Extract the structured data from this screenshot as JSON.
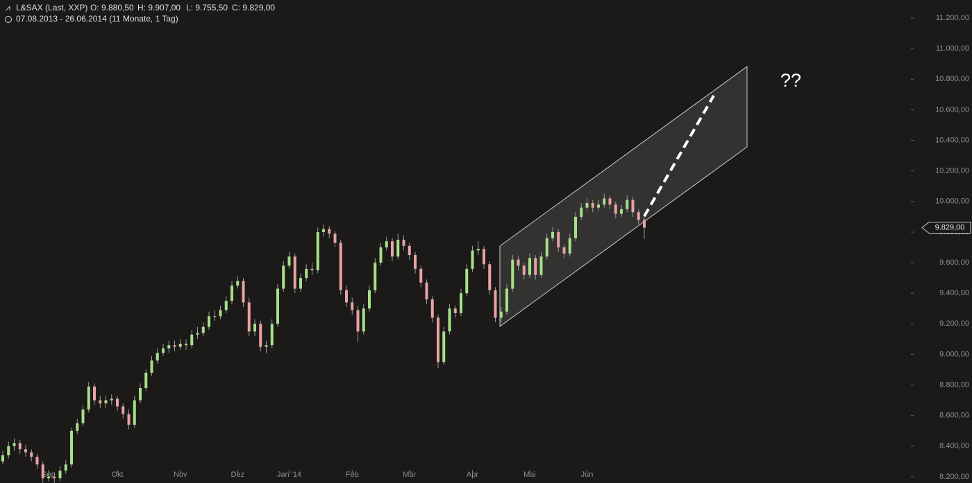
{
  "chart_data": {
    "type": "candlestick",
    "title": "L&SAX (Last, XXP)",
    "header_stats": [
      "O: 9.880,50",
      "H: 9.907,00",
      "L: 9.755,50",
      "C: 9.829,00"
    ],
    "subtitle": "07.08.2013 - 26.06.2014 (11 Monate, 1 Tag)",
    "annotation": "??",
    "up_color": "#a6e08a",
    "down_color": "#e8a3a3",
    "last_price": {
      "value": 9829,
      "label": "9.829,00"
    },
    "ylim": [
      8159,
      11318
    ],
    "yticks": [
      {
        "value": 8200,
        "label": "8.200,00"
      },
      {
        "value": 8400,
        "label": "8.400,00"
      },
      {
        "value": 8600,
        "label": "8.600,00"
      },
      {
        "value": 8800,
        "label": "8.800,00"
      },
      {
        "value": 9000,
        "label": "9.000,00"
      },
      {
        "value": 9200,
        "label": "9.200,00"
      },
      {
        "value": 9400,
        "label": "9.400,00"
      },
      {
        "value": 9600,
        "label": "9.600,00"
      },
      {
        "value": 9800,
        "label": "9.800,00"
      },
      {
        "value": 10000,
        "label": "10.000,00"
      },
      {
        "value": 10200,
        "label": "10.200,00"
      },
      {
        "value": 10400,
        "label": "10.400,00"
      },
      {
        "value": 10600,
        "label": "10.600,00"
      },
      {
        "value": 10800,
        "label": "10.800,00"
      },
      {
        "value": 11000,
        "label": "11.000,00"
      },
      {
        "value": 11200,
        "label": "11.200,00"
      }
    ],
    "categories": [
      null,
      null,
      null,
      null,
      null,
      null,
      null,
      null,
      "Sep",
      null,
      null,
      null,
      null,
      null,
      null,
      null,
      null,
      null,
      null,
      null,
      "Okt",
      null,
      null,
      null,
      null,
      null,
      null,
      null,
      null,
      null,
      null,
      "Nov",
      null,
      null,
      null,
      null,
      null,
      null,
      null,
      null,
      null,
      "Dez",
      null,
      null,
      null,
      null,
      null,
      null,
      null,
      null,
      "Jan '14",
      null,
      null,
      null,
      null,
      null,
      null,
      null,
      null,
      null,
      null,
      "Feb",
      null,
      null,
      null,
      null,
      null,
      null,
      null,
      null,
      null,
      "Mär",
      null,
      null,
      null,
      null,
      null,
      null,
      null,
      null,
      null,
      null,
      "Apr",
      null,
      null,
      null,
      null,
      null,
      null,
      null,
      null,
      null,
      "Mai",
      null,
      null,
      null,
      null,
      null,
      null,
      null,
      null,
      null,
      "Jun",
      null,
      null,
      null,
      null,
      null,
      null,
      null,
      null,
      null,
      null
    ],
    "ohlc": [
      [
        8300,
        8370,
        8280,
        8340
      ],
      [
        8340,
        8430,
        8320,
        8400
      ],
      [
        8400,
        8450,
        8370,
        8420
      ],
      [
        8420,
        8440,
        8350,
        8380
      ],
      [
        8380,
        8410,
        8330,
        8360
      ],
      [
        8360,
        8380,
        8300,
        8330
      ],
      [
        8330,
        8350,
        8250,
        8280
      ],
      [
        8280,
        8300,
        8160,
        8190
      ],
      [
        8190,
        8240,
        8170,
        8200
      ],
      [
        8200,
        8230,
        8160,
        8190
      ],
      [
        8190,
        8270,
        8170,
        8240
      ],
      [
        8240,
        8310,
        8220,
        8280
      ],
      [
        8280,
        8520,
        8260,
        8500
      ],
      [
        8500,
        8580,
        8480,
        8550
      ],
      [
        8550,
        8670,
        8530,
        8640
      ],
      [
        8640,
        8820,
        8620,
        8790
      ],
      [
        8790,
        8810,
        8670,
        8700
      ],
      [
        8700,
        8730,
        8650,
        8680
      ],
      [
        8680,
        8730,
        8650,
        8700
      ],
      [
        8700,
        8740,
        8670,
        8710
      ],
      [
        8710,
        8730,
        8630,
        8660
      ],
      [
        8660,
        8680,
        8580,
        8610
      ],
      [
        8610,
        8640,
        8510,
        8540
      ],
      [
        8540,
        8730,
        8520,
        8700
      ],
      [
        8700,
        8810,
        8680,
        8780
      ],
      [
        8780,
        8900,
        8760,
        8880
      ],
      [
        8880,
        8990,
        8860,
        8960
      ],
      [
        8960,
        9040,
        8940,
        9010
      ],
      [
        9010,
        9070,
        8990,
        9040
      ],
      [
        9040,
        9090,
        9010,
        9060
      ],
      [
        9060,
        9090,
        9020,
        9050
      ],
      [
        9050,
        9100,
        9030,
        9070
      ],
      [
        9070,
        9100,
        9030,
        9060
      ],
      [
        9060,
        9160,
        9040,
        9130
      ],
      [
        9130,
        9180,
        9100,
        9140
      ],
      [
        9140,
        9210,
        9120,
        9180
      ],
      [
        9180,
        9280,
        9160,
        9250
      ],
      [
        9250,
        9290,
        9220,
        9250
      ],
      [
        9250,
        9320,
        9230,
        9290
      ],
      [
        9290,
        9380,
        9270,
        9350
      ],
      [
        9350,
        9480,
        9330,
        9450
      ],
      [
        9450,
        9510,
        9430,
        9480
      ],
      [
        9480,
        9500,
        9310,
        9340
      ],
      [
        9340,
        9370,
        9120,
        9150
      ],
      [
        9150,
        9230,
        9120,
        9200
      ],
      [
        9200,
        9220,
        9020,
        9050
      ],
      [
        9050,
        9090,
        9010,
        9060
      ],
      [
        9060,
        9230,
        9040,
        9200
      ],
      [
        9200,
        9460,
        9180,
        9430
      ],
      [
        9430,
        9610,
        9410,
        9580
      ],
      [
        9580,
        9670,
        9560,
        9640
      ],
      [
        9640,
        9660,
        9400,
        9430
      ],
      [
        9430,
        9530,
        9410,
        9500
      ],
      [
        9500,
        9590,
        9480,
        9560
      ],
      [
        9560,
        9600,
        9520,
        9550
      ],
      [
        9550,
        9830,
        9530,
        9800
      ],
      [
        9800,
        9850,
        9770,
        9820
      ],
      [
        9820,
        9840,
        9760,
        9790
      ],
      [
        9790,
        9810,
        9700,
        9730
      ],
      [
        9730,
        9750,
        9390,
        9420
      ],
      [
        9420,
        9450,
        9310,
        9340
      ],
      [
        9340,
        9370,
        9260,
        9290
      ],
      [
        9290,
        9320,
        9080,
        9150
      ],
      [
        9150,
        9330,
        9130,
        9300
      ],
      [
        9300,
        9450,
        9280,
        9420
      ],
      [
        9420,
        9630,
        9400,
        9600
      ],
      [
        9600,
        9730,
        9580,
        9700
      ],
      [
        9700,
        9770,
        9680,
        9740
      ],
      [
        9740,
        9760,
        9610,
        9640
      ],
      [
        9640,
        9790,
        9620,
        9750
      ],
      [
        9750,
        9780,
        9680,
        9710
      ],
      [
        9710,
        9730,
        9620,
        9650
      ],
      [
        9650,
        9670,
        9530,
        9560
      ],
      [
        9560,
        9580,
        9440,
        9470
      ],
      [
        9470,
        9490,
        9330,
        9360
      ],
      [
        9360,
        9380,
        9210,
        9240
      ],
      [
        9240,
        9260,
        8910,
        8950
      ],
      [
        8950,
        9180,
        8930,
        9150
      ],
      [
        9150,
        9330,
        9130,
        9300
      ],
      [
        9300,
        9320,
        9240,
        9270
      ],
      [
        9270,
        9430,
        9250,
        9400
      ],
      [
        9400,
        9590,
        9380,
        9560
      ],
      [
        9560,
        9710,
        9540,
        9680
      ],
      [
        9680,
        9740,
        9650,
        9690
      ],
      [
        9690,
        9710,
        9560,
        9590
      ],
      [
        9590,
        9610,
        9390,
        9420
      ],
      [
        9420,
        9440,
        9210,
        9240
      ],
      [
        9240,
        9310,
        9210,
        9280
      ],
      [
        9280,
        9460,
        9260,
        9430
      ],
      [
        9430,
        9650,
        9410,
        9620
      ],
      [
        9620,
        9640,
        9550,
        9580
      ],
      [
        9580,
        9600,
        9490,
        9520
      ],
      [
        9520,
        9660,
        9500,
        9630
      ],
      [
        9630,
        9650,
        9490,
        9520
      ],
      [
        9520,
        9670,
        9500,
        9640
      ],
      [
        9640,
        9790,
        9620,
        9760
      ],
      [
        9760,
        9830,
        9740,
        9800
      ],
      [
        9800,
        9820,
        9670,
        9700
      ],
      [
        9700,
        9720,
        9630,
        9660
      ],
      [
        9660,
        9790,
        9640,
        9760
      ],
      [
        9760,
        9930,
        9740,
        9900
      ],
      [
        9900,
        9990,
        9880,
        9960
      ],
      [
        9960,
        10020,
        9940,
        9990
      ],
      [
        9990,
        10010,
        9930,
        9960
      ],
      [
        9960,
        10010,
        9940,
        9980
      ],
      [
        9980,
        10050,
        9960,
        10020
      ],
      [
        10020,
        10040,
        9950,
        9980
      ],
      [
        9980,
        10000,
        9890,
        9920
      ],
      [
        9920,
        9980,
        9900,
        9950
      ],
      [
        9950,
        10040,
        9930,
        10010
      ],
      [
        10010,
        10030,
        9900,
        9930
      ],
      [
        9930,
        9950,
        9850,
        9880
      ],
      [
        9880.5,
        9907,
        9755.5,
        9829
      ]
    ]
  }
}
